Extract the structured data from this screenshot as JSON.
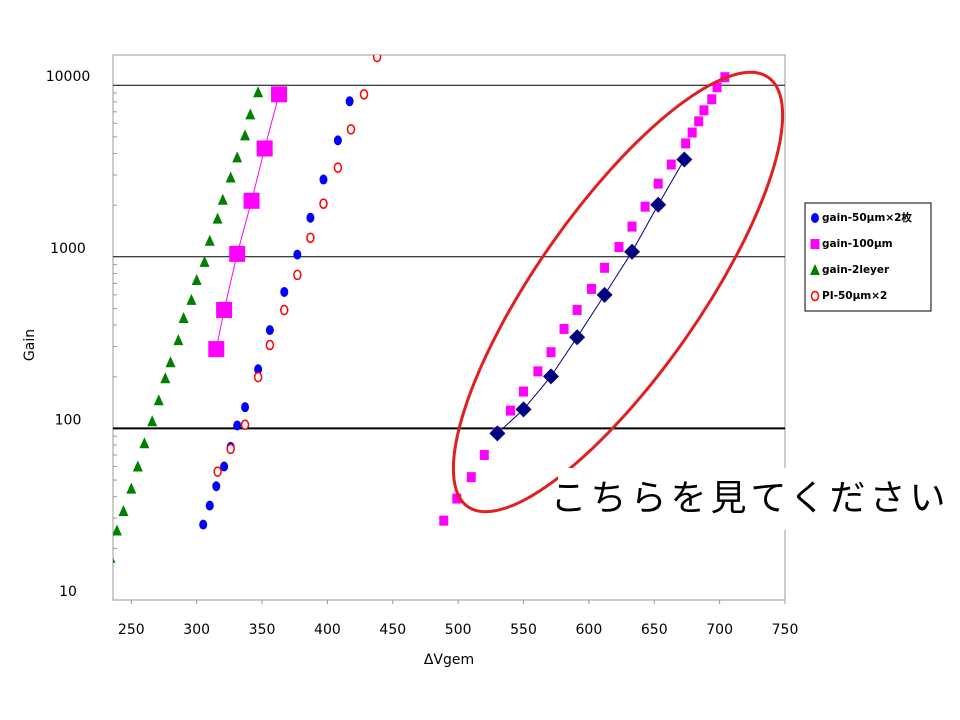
{
  "chart_data": {
    "type": "scatter",
    "x_label": "ΔVgem",
    "y_label": "Gain",
    "annotation": "こちらを見てください",
    "xlim": [
      236,
      750
    ],
    "xticks": [
      250,
      300,
      350,
      400,
      450,
      500,
      550,
      600,
      650,
      700,
      750
    ],
    "ylim": [
      10,
      15000
    ],
    "yticks": [
      10,
      100,
      1000,
      10000
    ],
    "log_y": true,
    "grid": true,
    "legend": "right",
    "series": [
      {
        "name": "gain-50μm×2枚",
        "color": "#0000ff",
        "marker": "circle",
        "line": false,
        "x": [
          305,
          310,
          315,
          321,
          326,
          331,
          337,
          347,
          356,
          367,
          377,
          387,
          397,
          408,
          417
        ],
        "values": [
          27.5,
          35.5,
          46,
          60,
          78,
          104,
          133,
          221,
          374,
          624,
          1030,
          1690,
          2820,
          4770,
          8060
        ]
      },
      {
        "name": "gain-100μm",
        "color": "#ff00ff",
        "marker": "square",
        "line": true,
        "x": [
          315,
          321,
          331,
          342,
          352,
          363
        ],
        "values": [
          290,
          490,
          1040,
          2120,
          4280,
          8850
        ]
      },
      {
        "color": "#ff00ff",
        "marker": "square-small",
        "line": false,
        "x": [
          489,
          499,
          510,
          520,
          530,
          540,
          550,
          561,
          571,
          581,
          591,
          602,
          612,
          623,
          633,
          643,
          653,
          663,
          674,
          679,
          684,
          688,
          694,
          698,
          704
        ],
        "values": [
          29,
          39,
          52,
          70,
          95,
          127,
          164,
          215,
          278,
          380,
          490,
          650,
          863,
          1140,
          1500,
          1960,
          2670,
          3450,
          4580,
          5300,
          6160,
          7140,
          8280,
          9730,
          11140
        ]
      },
      {
        "name": "gain-2leyer",
        "color": "#008000",
        "marker": "triangle",
        "line": false,
        "x": [
          234,
          239,
          244,
          250,
          255,
          260,
          266,
          271,
          276,
          280,
          286,
          290,
          296,
          300,
          306,
          310,
          316,
          320,
          326,
          331,
          337,
          341,
          347
        ],
        "values": [
          17.6,
          25.4,
          33,
          44.6,
          60,
          82,
          110,
          146,
          196,
          243,
          327,
          440,
          561,
          733,
          935,
          1240,
          1670,
          2150,
          2900,
          3800,
          5100,
          6760,
          9100
        ]
      },
      {
        "name": "PI-50μm×2",
        "color": "#ff0000",
        "marker": "open-circle",
        "line": false,
        "x": [
          316,
          326,
          337,
          347,
          356,
          367,
          377,
          387,
          397,
          408,
          418,
          428,
          438
        ],
        "values": [
          56,
          76,
          105,
          199,
          306,
          490,
          785,
          1290,
          2040,
          3310,
          5530,
          8850,
          14600
        ]
      },
      {
        "color": "#000080",
        "marker": "diamond",
        "line": true,
        "x": [
          530,
          550,
          571,
          591,
          612,
          633,
          653,
          673
        ],
        "values": [
          93.5,
          129,
          201,
          340,
          600,
          1070,
          2010,
          3690
        ]
      }
    ]
  }
}
